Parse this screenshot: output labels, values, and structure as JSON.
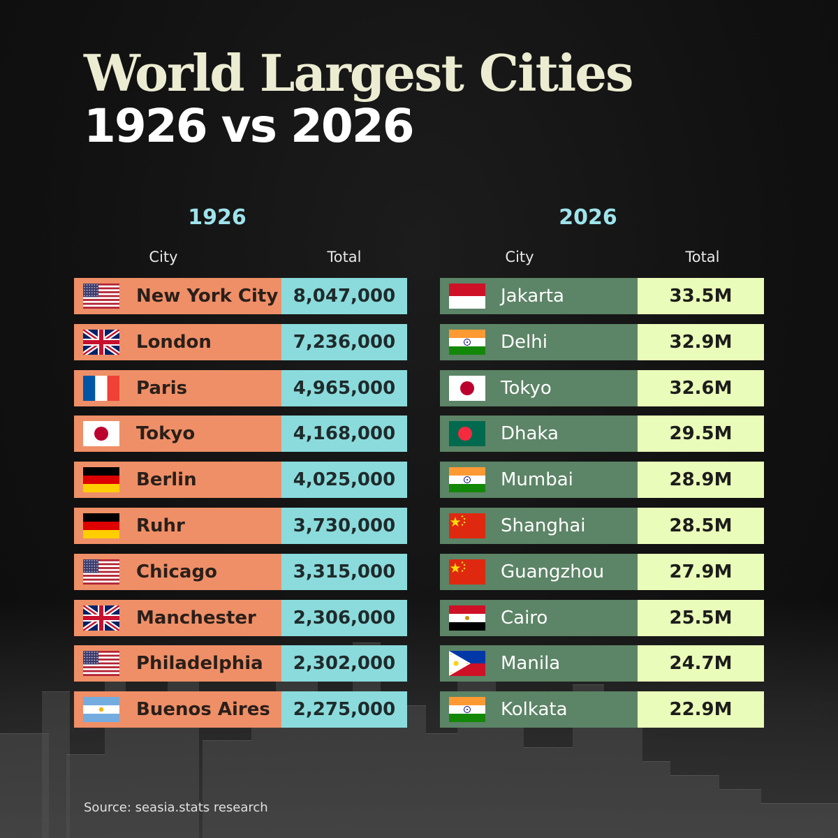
{
  "title_line1": "World Largest Cities",
  "title_line2": "1926 vs 2026",
  "source": "Source: seasia.stats research",
  "chart_data": [
    {
      "type": "table",
      "title": "1926",
      "columns": [
        "City",
        "Total"
      ],
      "rows": [
        {
          "flag": "usa-flag-icon",
          "city": "New York City",
          "total": "8,047,000"
        },
        {
          "flag": "uk-flag-icon",
          "city": "London",
          "total": "7,236,000"
        },
        {
          "flag": "france-flag-icon",
          "city": "Paris",
          "total": "4,965,000"
        },
        {
          "flag": "japan-flag-icon",
          "city": "Tokyo",
          "total": "4,168,000"
        },
        {
          "flag": "germany-flag-icon",
          "city": "Berlin",
          "total": "4,025,000"
        },
        {
          "flag": "germany-flag-icon",
          "city": "Ruhr",
          "total": "3,730,000"
        },
        {
          "flag": "usa-flag-icon",
          "city": "Chicago",
          "total": "3,315,000"
        },
        {
          "flag": "uk-flag-icon",
          "city": "Manchester",
          "total": "2,306,000"
        },
        {
          "flag": "usa-flag-icon",
          "city": "Philadelphia",
          "total": "2,302,000"
        },
        {
          "flag": "argentina-flag-icon",
          "city": "Buenos Aires",
          "total": "2,275,000"
        }
      ]
    },
    {
      "type": "table",
      "title": "2026",
      "columns": [
        "City",
        "Total"
      ],
      "rows": [
        {
          "flag": "indonesia-flag-icon",
          "city": "Jakarta",
          "total": "33.5M"
        },
        {
          "flag": "india-flag-icon",
          "city": "Delhi",
          "total": "32.9M"
        },
        {
          "flag": "japan-flag-icon",
          "city": "Tokyo",
          "total": "32.6M"
        },
        {
          "flag": "bangladesh-flag-icon",
          "city": "Dhaka",
          "total": "29.5M"
        },
        {
          "flag": "india-flag-icon",
          "city": "Mumbai",
          "total": "28.9M"
        },
        {
          "flag": "china-flag-icon",
          "city": "Shanghai",
          "total": "28.5M"
        },
        {
          "flag": "china-flag-icon",
          "city": "Guangzhou",
          "total": "27.9M"
        },
        {
          "flag": "egypt-flag-icon",
          "city": "Cairo",
          "total": "25.5M"
        },
        {
          "flag": "philippines-flag-icon",
          "city": "Manila",
          "total": "24.7M"
        },
        {
          "flag": "india-flag-icon",
          "city": "Kolkata",
          "total": "22.9M"
        }
      ]
    }
  ],
  "colors": {
    "title": "#ececd2",
    "year_label": "#9fe3ec",
    "city_1926": "#ef8f67",
    "total_1926": "#8bdbdc",
    "city_2026": "#5c8466",
    "total_2026": "#eafcb9"
  }
}
